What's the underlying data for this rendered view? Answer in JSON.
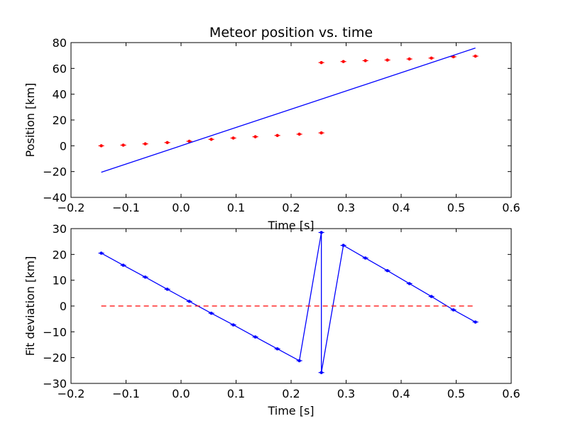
{
  "chart_data": [
    {
      "type": "scatter",
      "title": "Meteor position vs. time",
      "xlabel": "Time [s]",
      "ylabel": "Position [km]",
      "xlim": [
        -0.2,
        0.6
      ],
      "ylim": [
        -40,
        80
      ],
      "xticks": [
        "−0.2",
        "−0.1",
        "0.0",
        "0.1",
        "0.2",
        "0.3",
        "0.4",
        "0.5",
        "0.6"
      ],
      "yticks": [
        "−40",
        "−20",
        "0",
        "20",
        "40",
        "60",
        "80"
      ],
      "grid": false,
      "colors": {
        "points": "#ff0000",
        "fit": "#0000ff"
      },
      "series": [
        {
          "kind": "points-with-errorbars",
          "x": [
            -0.145,
            -0.105,
            -0.065,
            -0.025,
            0.015,
            0.055,
            0.095,
            0.135,
            0.175,
            0.215,
            0.255,
            0.255,
            0.295,
            0.335,
            0.375,
            0.415,
            0.455,
            0.495,
            0.535
          ],
          "y": [
            0.0,
            0.5,
            1.5,
            2.5,
            3.5,
            5.0,
            6.0,
            7.0,
            8.0,
            9.0,
            10.0,
            64.5,
            65.3,
            66.0,
            66.5,
            67.3,
            68.0,
            69.0,
            69.5
          ]
        },
        {
          "kind": "fit-line",
          "x": [
            -0.145,
            0.535
          ],
          "y": [
            -20.5,
            75.8
          ]
        }
      ]
    },
    {
      "type": "line",
      "xlabel": "Time [s]",
      "ylabel": "Fit deviation [km]",
      "xlim": [
        -0.2,
        0.6
      ],
      "ylim": [
        -30,
        30
      ],
      "xticks": [
        "−0.2",
        "−0.1",
        "0.0",
        "0.1",
        "0.2",
        "0.3",
        "0.4",
        "0.5",
        "0.6"
      ],
      "yticks": [
        "−30",
        "−20",
        "−10",
        "0",
        "10",
        "20",
        "30"
      ],
      "grid": false,
      "colors": {
        "deviation": "#0000ff",
        "zero": "#ff0000"
      },
      "series": [
        {
          "kind": "deviation-line",
          "x": [
            -0.145,
            -0.105,
            -0.065,
            -0.025,
            0.015,
            0.055,
            0.095,
            0.135,
            0.175,
            0.215,
            0.255,
            0.255,
            0.295,
            0.335,
            0.375,
            0.415,
            0.455,
            0.495,
            0.535
          ],
          "y": [
            20.5,
            15.8,
            11.2,
            6.5,
            1.8,
            -2.8,
            -7.3,
            -12.0,
            -16.6,
            -21.2,
            28.5,
            -25.8,
            23.5,
            18.6,
            13.7,
            8.7,
            3.7,
            -1.5,
            -6.2
          ]
        },
        {
          "kind": "zero-line",
          "x": [
            -0.145,
            0.535
          ],
          "y": [
            0,
            0
          ]
        }
      ]
    }
  ]
}
